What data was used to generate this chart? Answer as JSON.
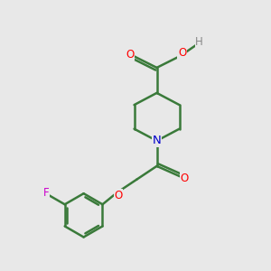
{
  "background_color": "#e8e8e8",
  "bond_color": "#3a7a3a",
  "atom_colors": {
    "O": "#ff0000",
    "N": "#0000cc",
    "F": "#cc00cc",
    "H": "#888888",
    "C": "#3a7a3a"
  },
  "bond_width": 1.8,
  "font_size": 8.5,
  "xlim": [
    0,
    10
  ],
  "ylim": [
    0,
    10
  ]
}
